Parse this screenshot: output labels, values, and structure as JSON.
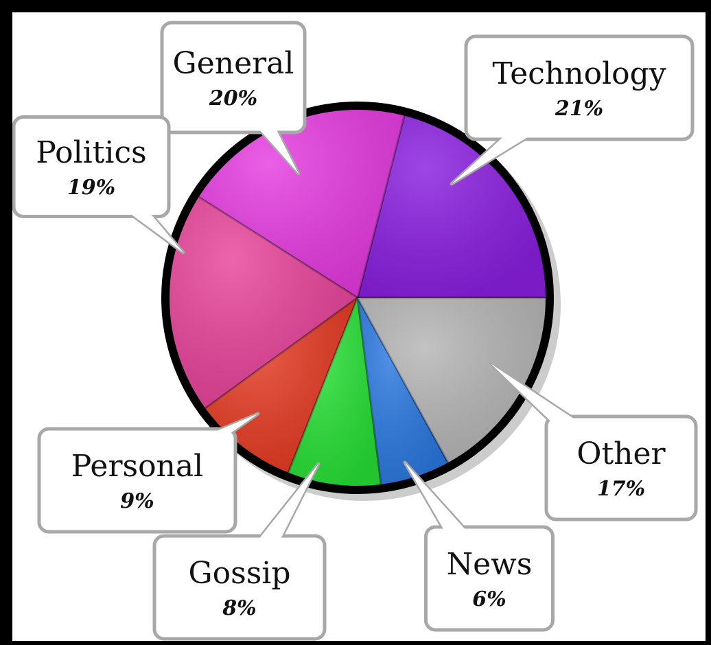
{
  "chart_data": {
    "type": "pie",
    "start_angle_deg": 0,
    "direction": "counterclockwise",
    "slices": [
      {
        "label": "Technology",
        "value": 21,
        "display": "21%",
        "color": "#8a1fe0"
      },
      {
        "label": "General",
        "value": 20,
        "display": "20%",
        "color": "#e63be0"
      },
      {
        "label": "Politics",
        "value": 19,
        "display": "19%",
        "color": "#e8439a"
      },
      {
        "label": "Personal",
        "value": 9,
        "display": "9%",
        "color": "#e53a22"
      },
      {
        "label": "Gossip",
        "value": 8,
        "display": "8%",
        "color": "#27e035"
      },
      {
        "label": "News",
        "value": 6,
        "display": "6%",
        "color": "#2a78e0"
      },
      {
        "label": "Other",
        "value": 17,
        "display": "17%",
        "color": "#b5b5b5"
      }
    ]
  },
  "colors": {
    "background": "#000000",
    "canvas": "#ffffff",
    "outline": "#000000",
    "callout_border": "#a8a8a8"
  }
}
